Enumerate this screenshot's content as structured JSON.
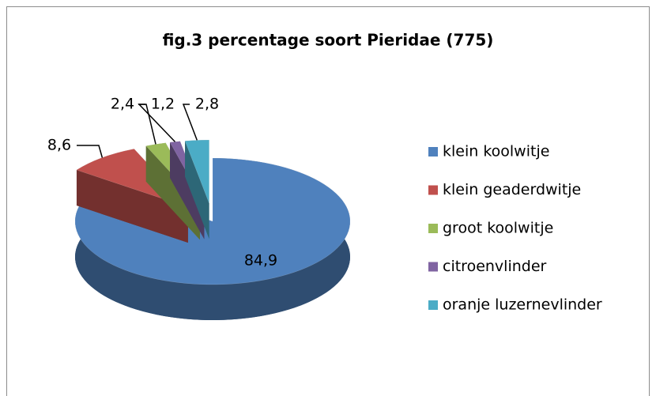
{
  "chart_data": {
    "type": "pie",
    "title": "fig.3  percentage soort Pieridae (775)",
    "categories": [
      "klein koolwitje",
      "klein geaderdwitje",
      "groot koolwitje",
      "citroenvlinder",
      "oranje luzernevlinder"
    ],
    "values": [
      84.9,
      8.6,
      2.4,
      1.2,
      2.8
    ],
    "value_labels": [
      "84,9",
      "8,6",
      "2,4",
      "1,2",
      "2,8"
    ],
    "colors": [
      "#4f81bd",
      "#c0504d",
      "#9bbb59",
      "#8064a2",
      "#4bacc6"
    ],
    "legend": "right"
  }
}
